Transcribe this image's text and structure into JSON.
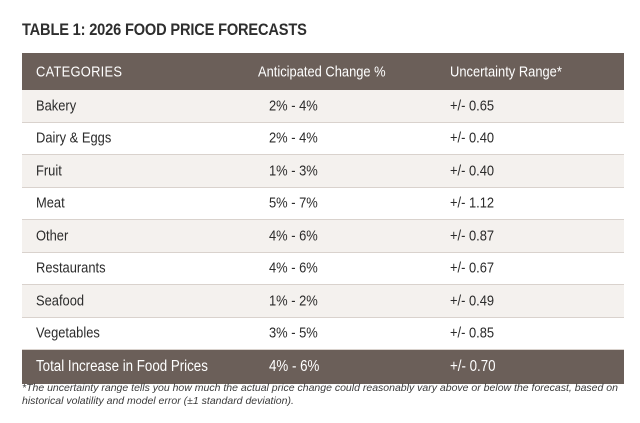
{
  "title": "TABLE 1: 2026 FOOD PRICE FORECASTS",
  "table": {
    "headers": [
      "CATEGORIES",
      "Anticipated Change %",
      "Uncertainty Range*"
    ],
    "rows": [
      {
        "category": "Bakery",
        "change": "2% - 4%",
        "range": "+/- 0.65"
      },
      {
        "category": "Dairy & Eggs",
        "change": "2% - 4%",
        "range": "+/- 0.40"
      },
      {
        "category": "Fruit",
        "change": "1% - 3%",
        "range": "+/- 0.40"
      },
      {
        "category": "Meat",
        "change": "5% - 7%",
        "range": "+/- 1.12"
      },
      {
        "category": "Other",
        "change": "4% - 6%",
        "range": "+/- 0.87"
      },
      {
        "category": "Restaurants",
        "change": "4% - 6%",
        "range": "+/- 0.67"
      },
      {
        "category": "Seafood",
        "change": "1% - 2%",
        "range": "+/- 0.49"
      },
      {
        "category": "Vegetables",
        "change": "3% - 5%",
        "range": "+/- 0.85"
      }
    ],
    "total": {
      "category": "Total Increase in Food Prices",
      "change": "4% - 6%",
      "range": "+/- 0.70"
    }
  },
  "footnote": "*The uncertainty range tells you how much the actual price change could reasonably vary above or below the forecast, based on historical volatility and model error (±1 standard deviation).",
  "colors": {
    "header_bg": "#6b5f59",
    "row_shade": "#f4f1ee",
    "row_border": "#d9d2cd"
  }
}
